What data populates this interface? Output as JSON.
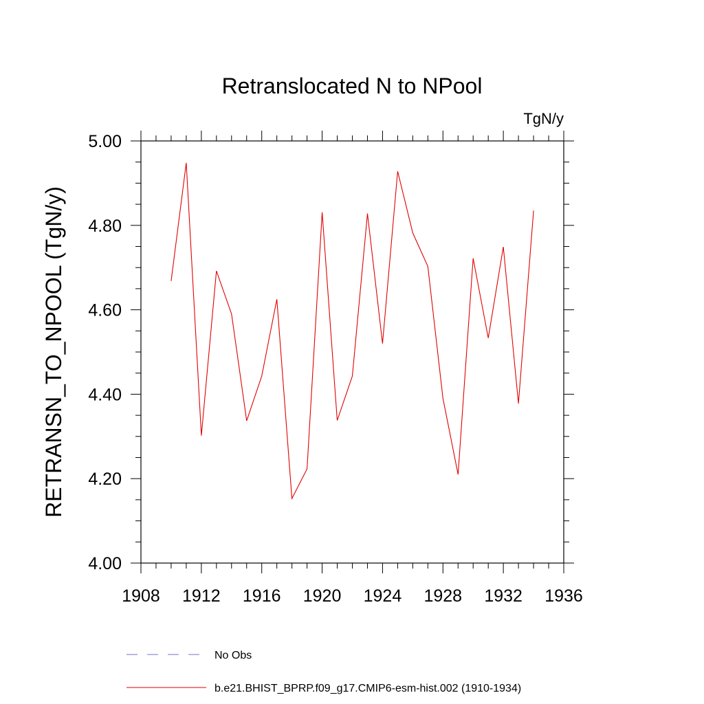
{
  "chart_data": {
    "type": "line",
    "title": "Retranslocated N to NPool",
    "units": "TgN/y",
    "ylabel": "RETRANSN_TO_NPOOL  (TgN/y)",
    "xlabel": "",
    "xlim": [
      1908,
      1936
    ],
    "ylim": [
      4.0,
      5.0
    ],
    "x_ticks": [
      1908,
      1912,
      1916,
      1920,
      1924,
      1928,
      1932,
      1936
    ],
    "x_tick_labels": [
      "1908",
      "1912",
      "1916",
      "1920",
      "1924",
      "1928",
      "1932",
      "1936"
    ],
    "y_ticks": [
      4.0,
      4.2,
      4.4,
      4.6,
      4.8,
      5.0
    ],
    "y_tick_labels": [
      "4.00",
      "4.20",
      "4.40",
      "4.60",
      "4.80",
      "5.00"
    ],
    "grid": false,
    "legend_position": "bottom",
    "series": [
      {
        "name": "b.e21.BHIST_BPRP.f09_g17.CMIP6-esm-hist.002 (1910-1934)",
        "color": "#e00000",
        "style": "solid",
        "x": [
          1910,
          1911,
          1912,
          1913,
          1914,
          1915,
          1916,
          1917,
          1918,
          1919,
          1920,
          1921,
          1922,
          1923,
          1924,
          1925,
          1926,
          1927,
          1928,
          1929,
          1930,
          1931,
          1932,
          1933,
          1934
        ],
        "values": [
          4.668,
          4.948,
          4.302,
          4.692,
          4.59,
          4.337,
          4.443,
          4.625,
          4.153,
          4.223,
          4.831,
          4.338,
          4.443,
          4.828,
          4.52,
          4.928,
          4.782,
          4.703,
          4.39,
          4.21,
          4.722,
          4.533,
          4.749,
          4.378,
          4.835
        ]
      },
      {
        "name": "No Obs",
        "color": "#7070c8",
        "style": "dashed",
        "x": [],
        "values": []
      }
    ]
  }
}
